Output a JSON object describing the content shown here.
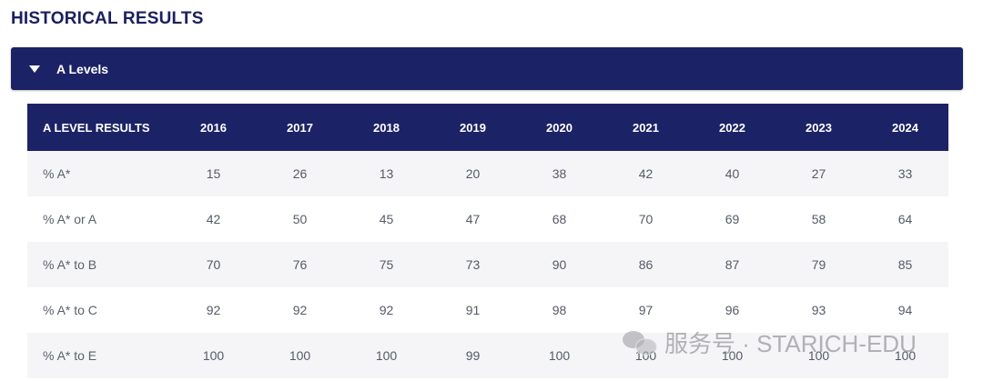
{
  "section": {
    "title": "HISTORICAL RESULTS"
  },
  "accordion": {
    "label": "A Levels",
    "expanded": true,
    "caret_icon": "caret-down-icon",
    "color": "#1c2266"
  },
  "table": {
    "header_label": "A LEVEL RESULTS",
    "years": [
      "2016",
      "2017",
      "2018",
      "2019",
      "2020",
      "2021",
      "2022",
      "2023",
      "2024"
    ],
    "rows": [
      {
        "label": "% A*",
        "values": [
          "15",
          "26",
          "13",
          "20",
          "38",
          "42",
          "40",
          "27",
          "33"
        ]
      },
      {
        "label": "% A* or A",
        "values": [
          "42",
          "50",
          "45",
          "47",
          "68",
          "70",
          "69",
          "58",
          "64"
        ]
      },
      {
        "label": "% A* to B",
        "values": [
          "70",
          "76",
          "75",
          "73",
          "90",
          "86",
          "87",
          "79",
          "85"
        ]
      },
      {
        "label": "% A* to C",
        "values": [
          "92",
          "92",
          "92",
          "91",
          "98",
          "97",
          "96",
          "93",
          "94"
        ]
      },
      {
        "label": "% A* to E",
        "values": [
          "100",
          "100",
          "100",
          "99",
          "100",
          "100",
          "100",
          "100",
          "100"
        ]
      }
    ]
  },
  "watermark": {
    "icon": "wechat-icon",
    "text": "服务号 · STARICH-EDU"
  }
}
